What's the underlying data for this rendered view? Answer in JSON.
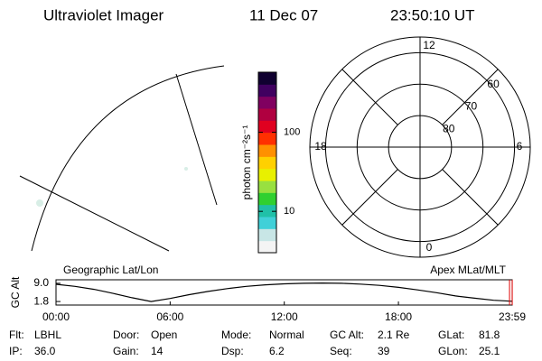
{
  "header": {
    "title": "Ultraviolet Imager",
    "date": "11 Dec 07",
    "time": "23:50:10 UT"
  },
  "chart_data": [
    {
      "type": "map",
      "title": "Geographic Lat/Lon"
    },
    {
      "type": "colorbar",
      "label": "photon cm⁻²s⁻¹",
      "log_scale": true,
      "ylim": [
        3,
        575
      ],
      "yticks": [
        10,
        100
      ],
      "colors": [
        "#f4f4f4",
        "#c8e6e6",
        "#40d0d8",
        "#20c0a8",
        "#30d030",
        "#98e040",
        "#e8f000",
        "#ffd000",
        "#ff9000",
        "#ff3000",
        "#e00020",
        "#b00040",
        "#800060",
        "#400060",
        "#100030"
      ]
    },
    {
      "type": "polar",
      "title": "Apex MLat/MLT",
      "rlim": [
        90,
        55
      ],
      "rticks": [
        80,
        70,
        60
      ],
      "thetaticks": [
        0,
        6,
        12,
        18
      ]
    },
    {
      "type": "line",
      "ylabel": "GC Alt",
      "color": "#000000",
      "x": [
        0,
        1,
        2,
        3,
        4,
        5,
        6,
        7,
        8,
        9,
        10,
        11,
        12,
        13,
        14,
        15,
        16,
        17,
        18,
        19,
        20,
        21,
        22,
        23,
        23.98
      ],
      "values": [
        8.6,
        7.8,
        6.6,
        5.0,
        3.3,
        1.8,
        3.0,
        4.5,
        5.8,
        6.9,
        7.8,
        8.4,
        8.8,
        9.0,
        9.1,
        9.0,
        8.7,
        8.2,
        7.4,
        6.4,
        5.3,
        4.0,
        3.1,
        2.3,
        1.9
      ],
      "xlim": [
        0,
        23.98
      ],
      "xticks": [
        {
          "value": 0,
          "label": "00:00"
        },
        {
          "value": 6,
          "label": "06:00"
        },
        {
          "value": 12,
          "label": "12:00"
        },
        {
          "value": 18,
          "label": "18:00"
        },
        {
          "value": 23.98,
          "label": "23:59"
        }
      ],
      "ylim": [
        0.4,
        10.4
      ],
      "yticks": [
        1.8,
        {
          "value": 9,
          "label": "9.0"
        }
      ],
      "marker_x": 23.84,
      "marker_color": "#e00000"
    }
  ],
  "footer": {
    "rows": [
      [
        [
          "Flt:",
          "LBHL"
        ],
        [
          "Door:",
          "Open"
        ],
        [
          "Mode:",
          "Normal"
        ],
        [
          "GC Alt:",
          "2.1 Re"
        ],
        [
          "GLat:",
          "81.8"
        ]
      ],
      [
        [
          "IP:",
          "36.0"
        ],
        [
          "Gain:",
          "14"
        ],
        [
          "Dsp:",
          "6.2"
        ],
        [
          "Seq:",
          "39"
        ],
        [
          "GLon:",
          "25.1"
        ]
      ]
    ]
  }
}
